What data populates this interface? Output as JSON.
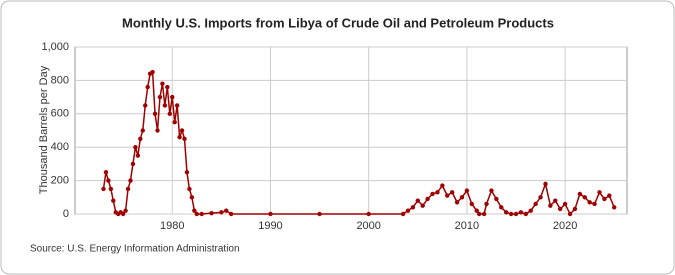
{
  "chart_data": {
    "type": "line",
    "title": "Monthly U.S. Imports from Libya of Crude Oil and Petroleum Products",
    "y_label": "Thousand Barrels per Day",
    "source": "Source: U.S. Energy Information Administration",
    "x": [
      1973.0,
      1973.25,
      1973.5,
      1973.75,
      1974.0,
      1974.25,
      1974.5,
      1974.75,
      1975.0,
      1975.25,
      1975.5,
      1975.75,
      1976.0,
      1976.25,
      1976.5,
      1976.75,
      1977.0,
      1977.25,
      1977.5,
      1977.75,
      1978.0,
      1978.25,
      1978.5,
      1978.75,
      1979.0,
      1979.25,
      1979.5,
      1979.75,
      1980.0,
      1980.25,
      1980.5,
      1980.75,
      1981.0,
      1981.25,
      1981.5,
      1981.75,
      1982.0,
      1982.25,
      1982.5,
      1983.0,
      1984.0,
      1985.0,
      1985.5,
      1986.0,
      1990.0,
      1995.0,
      2000.0,
      2003.5,
      2004.0,
      2004.5,
      2005.0,
      2005.5,
      2006.0,
      2006.5,
      2007.0,
      2007.5,
      2008.0,
      2008.5,
      2009.0,
      2009.5,
      2010.0,
      2010.5,
      2011.0,
      2011.25,
      2011.75,
      2012.0,
      2012.5,
      2013.0,
      2013.5,
      2014.0,
      2014.5,
      2015.0,
      2015.5,
      2016.0,
      2016.5,
      2017.0,
      2017.5,
      2018.0,
      2018.5,
      2019.0,
      2019.5,
      2020.0,
      2020.5,
      2021.0,
      2021.5,
      2022.0,
      2022.5,
      2023.0,
      2023.5,
      2024.0,
      2024.5,
      2025.0
    ],
    "series": [
      {
        "name": "Imports",
        "color": "#a00000",
        "values": [
          150,
          250,
          200,
          150,
          80,
          10,
          0,
          10,
          0,
          20,
          150,
          200,
          300,
          400,
          350,
          450,
          500,
          650,
          760,
          840,
          850,
          600,
          500,
          700,
          780,
          650,
          760,
          600,
          700,
          550,
          650,
          460,
          500,
          450,
          250,
          150,
          100,
          20,
          0,
          0,
          5,
          10,
          20,
          0,
          0,
          0,
          0,
          0,
          20,
          40,
          80,
          50,
          90,
          120,
          130,
          170,
          110,
          130,
          70,
          100,
          140,
          60,
          20,
          0,
          0,
          60,
          140,
          90,
          40,
          10,
          0,
          0,
          10,
          0,
          20,
          60,
          100,
          180,
          50,
          80,
          30,
          60,
          0,
          30,
          120,
          100,
          70,
          60,
          130,
          90,
          110,
          40
        ]
      }
    ],
    "xlim": [
      1970.1,
      2026.3
    ],
    "xticks": [
      1980,
      1990,
      2000,
      2010,
      2020
    ],
    "ylim": [
      0,
      1000
    ],
    "yticks": [
      0,
      200,
      400,
      600,
      800,
      {
        "value": 1000,
        "label": "1,000"
      }
    ],
    "grid": true
  }
}
